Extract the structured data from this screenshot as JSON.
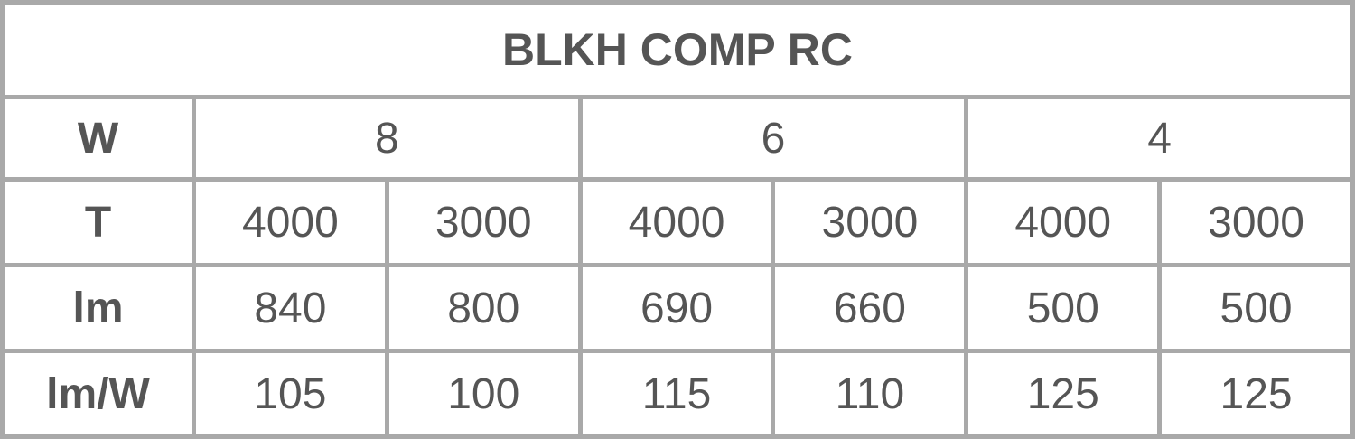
{
  "title": "BLKH COMP RC",
  "row_labels": {
    "w": "W",
    "t": "T",
    "lm": "lm",
    "lmw": "lm/W"
  },
  "watts": [
    "8",
    "6",
    "4"
  ],
  "temps": [
    "4000",
    "3000",
    "4000",
    "3000",
    "4000",
    "3000"
  ],
  "lumens": [
    "840",
    "800",
    "690",
    "660",
    "500",
    "500"
  ],
  "efficacy": [
    "105",
    "100",
    "115",
    "110",
    "125",
    "125"
  ],
  "colors": {
    "border": "#a9a9a9",
    "text": "#555555"
  }
}
